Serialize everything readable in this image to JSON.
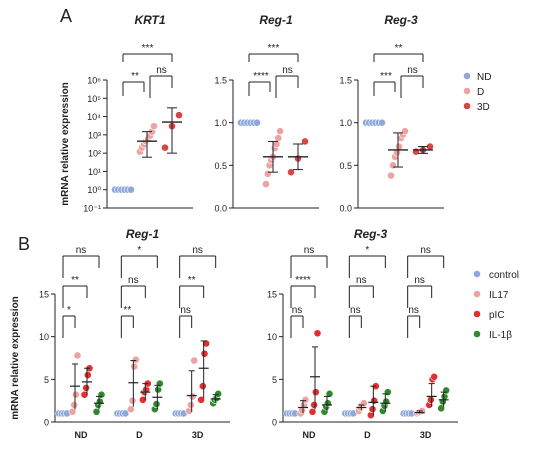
{
  "panels": {
    "A": "A",
    "B": "B"
  },
  "colors": {
    "ND": "#8ea8db",
    "D": "#eea3a3",
    "3D": "#d84545",
    "control": "#8ea8db",
    "IL17": "#eea3a3",
    "pIC": "#e03030",
    "IL-1β": "#2f8a2f"
  },
  "chart_data": [
    {
      "type": "scatter",
      "title": "KRT1",
      "ylabel": "mRNA relative expression",
      "yscale": "log",
      "ylim": [
        0.1,
        1000000
      ],
      "yticks": [
        "10⁻¹",
        "10⁰",
        "10¹",
        "10²",
        "10³",
        "10⁴",
        "10⁵",
        "10⁶"
      ],
      "categories": [
        "ND",
        "D",
        "3D"
      ],
      "series": [
        {
          "name": "ND",
          "values": [
            1,
            1,
            1,
            1,
            1,
            1
          ],
          "mean": 1,
          "sd": [
            1,
            1
          ]
        },
        {
          "name": "D",
          "values": [
            120,
            200,
            300,
            450,
            600,
            900,
            1500,
            3000
          ],
          "mean": 450,
          "sd": [
            60,
            1500
          ]
        },
        {
          "name": "3D",
          "values": [
            200,
            3000,
            12000
          ],
          "mean": 5000,
          "sd": [
            100,
            30000
          ]
        }
      ],
      "significance": [
        {
          "pair": [
            "ND",
            "D"
          ],
          "label": "**"
        },
        {
          "pair": [
            "D",
            "3D"
          ],
          "label": "ns"
        },
        {
          "pair": [
            "ND",
            "3D"
          ],
          "label": "***"
        }
      ]
    },
    {
      "type": "scatter",
      "title": "Reg-1",
      "ylim": [
        0,
        1.5
      ],
      "yticks": [
        "0.0",
        "0.5",
        "1.0",
        "1.5"
      ],
      "categories": [
        "ND",
        "D",
        "3D"
      ],
      "series": [
        {
          "name": "ND",
          "values": [
            1,
            1,
            1,
            1,
            1,
            1
          ],
          "mean": 1,
          "sd": [
            1,
            1
          ]
        },
        {
          "name": "D",
          "values": [
            0.28,
            0.4,
            0.5,
            0.56,
            0.6,
            0.7,
            0.75,
            0.82,
            0.9
          ],
          "mean": 0.6,
          "sd": [
            0.42,
            0.78
          ]
        },
        {
          "name": "3D",
          "values": [
            0.42,
            0.58,
            0.78
          ],
          "mean": 0.6,
          "sd": [
            0.45,
            0.75
          ]
        }
      ],
      "significance": [
        {
          "pair": [
            "ND",
            "D"
          ],
          "label": "****"
        },
        {
          "pair": [
            "D",
            "3D"
          ],
          "label": "ns"
        },
        {
          "pair": [
            "ND",
            "3D"
          ],
          "label": "***"
        }
      ]
    },
    {
      "type": "scatter",
      "title": "Reg-3",
      "ylim": [
        0,
        1.5
      ],
      "yticks": [
        "0.0",
        "0.5",
        "1.0",
        "1.5"
      ],
      "categories": [
        "ND",
        "D",
        "3D"
      ],
      "legend": [
        "ND",
        "D",
        "3D"
      ],
      "series": [
        {
          "name": "ND",
          "values": [
            1,
            1,
            1,
            1,
            1,
            1
          ],
          "mean": 1,
          "sd": [
            1,
            1
          ]
        },
        {
          "name": "D",
          "values": [
            0.38,
            0.5,
            0.6,
            0.65,
            0.72,
            0.82,
            0.86,
            0.9
          ],
          "mean": 0.68,
          "sd": [
            0.48,
            0.88
          ]
        },
        {
          "name": "3D",
          "values": [
            0.66,
            0.68,
            0.72
          ],
          "mean": 0.68,
          "sd": [
            0.64,
            0.72
          ]
        }
      ],
      "significance": [
        {
          "pair": [
            "ND",
            "D"
          ],
          "label": "***"
        },
        {
          "pair": [
            "D",
            "3D"
          ],
          "label": "ns"
        },
        {
          "pair": [
            "ND",
            "3D"
          ],
          "label": "**"
        }
      ]
    },
    {
      "type": "scatter",
      "title": "Reg-1",
      "ylabel": "mRNA relative expression",
      "ylim": [
        0,
        15
      ],
      "yticks": [
        "0",
        "5",
        "10",
        "15"
      ],
      "categories": [
        "ND",
        "D",
        "3D"
      ],
      "series": [
        {
          "name": "control",
          "values": [
            [
              1,
              1,
              1,
              1
            ],
            [
              1,
              1,
              1,
              1
            ],
            [
              1,
              1,
              1,
              1
            ]
          ],
          "mean": [
            1,
            1,
            1
          ]
        },
        {
          "name": "IL17",
          "values": [
            [
              1.2,
              2,
              3.2,
              7.8
            ],
            [
              1.5,
              2.5,
              6.5,
              7.3
            ],
            [
              1.3,
              2,
              3,
              7.2
            ]
          ],
          "mean": [
            4.2,
            4.6,
            3.1
          ],
          "sd": [
            [
              1.5,
              6.8
            ],
            [
              1.8,
              7.2
            ],
            [
              1.2,
              6
            ]
          ]
        },
        {
          "name": "pIC",
          "values": [
            [
              3.2,
              4,
              5.5,
              6.3
            ],
            [
              2.6,
              3.5,
              3.8,
              4.5
            ],
            [
              2.6,
              4.2,
              8,
              9.2
            ]
          ],
          "mean": [
            4.7,
            3.5,
            6.3
          ],
          "sd": [
            [
              3.2,
              6.3
            ],
            [
              2.6,
              4.5
            ],
            [
              2.8,
              9.5
            ]
          ]
        },
        {
          "name": "IL-1β",
          "values": [
            [
              1.2,
              2,
              2.4,
              3.2
            ],
            [
              1.5,
              2.1,
              3.8,
              4.5
            ],
            [
              2.2,
              2.6,
              2.8,
              3.3
            ]
          ],
          "mean": [
            2.2,
            2.9,
            2.7
          ],
          "sd": [
            [
              1.5,
              3
            ],
            [
              1.5,
              4.3
            ],
            [
              2.3,
              3.2
            ]
          ]
        }
      ],
      "significance": [
        {
          "group": "ND",
          "levels": [
            "*",
            "**",
            "ns"
          ]
        },
        {
          "group": "D",
          "levels": [
            "**",
            "ns",
            "*"
          ]
        },
        {
          "group": "3D",
          "levels": [
            "ns",
            "**",
            "ns"
          ]
        }
      ]
    },
    {
      "type": "scatter",
      "title": "Reg-3",
      "ylim": [
        0,
        15
      ],
      "yticks": [
        "0",
        "5",
        "10",
        "15"
      ],
      "categories": [
        "ND",
        "D",
        "3D"
      ],
      "legend": [
        "control",
        "IL17",
        "pIC",
        "IL-1β"
      ],
      "series": [
        {
          "name": "control",
          "values": [
            [
              1,
              1,
              1,
              1
            ],
            [
              1,
              1,
              1,
              1
            ],
            [
              1,
              1,
              1,
              1
            ]
          ],
          "mean": [
            1,
            1,
            1
          ]
        },
        {
          "name": "IL17",
          "values": [
            [
              1,
              1.4,
              2,
              2.6
            ],
            [
              1.3,
              1.7,
              2,
              2.2
            ],
            [
              1,
              1.1,
              1.2,
              1.3
            ]
          ],
          "mean": [
            1.7,
            1.7,
            1.1
          ],
          "sd": [
            [
              1,
              2.5
            ],
            [
              1.4,
              2
            ],
            [
              1,
              1.3
            ]
          ]
        },
        {
          "name": "pIC",
          "values": [
            [
              1.2,
              2,
              3.5,
              10.4
            ],
            [
              0.8,
              1.5,
              2.5,
              4.2
            ],
            [
              2,
              2.6,
              5,
              5.3
            ]
          ],
          "mean": [
            5.3,
            2.3,
            3
          ],
          "sd": [
            [
              1.5,
              8.8
            ],
            [
              0.8,
              4.2
            ],
            [
              1.8,
              4.5
            ]
          ]
        },
        {
          "name": "IL-1β",
          "values": [
            [
              1.2,
              1.8,
              2.2,
              3.3
            ],
            [
              1.3,
              1.9,
              2.4,
              3.5
            ],
            [
              1.6,
              2.4,
              3,
              3.7
            ]
          ],
          "mean": [
            2,
            2.2,
            2.6
          ],
          "sd": [
            [
              1.3,
              3
            ],
            [
              1.3,
              3.3
            ],
            [
              1.8,
              3.5
            ]
          ]
        }
      ],
      "significance": [
        {
          "group": "ND",
          "levels": [
            "ns",
            "****",
            "ns"
          ]
        },
        {
          "group": "D",
          "levels": [
            "ns",
            "ns",
            "*"
          ]
        },
        {
          "group": "3D",
          "levels": [
            "ns",
            "ns",
            "ns"
          ]
        }
      ]
    }
  ]
}
